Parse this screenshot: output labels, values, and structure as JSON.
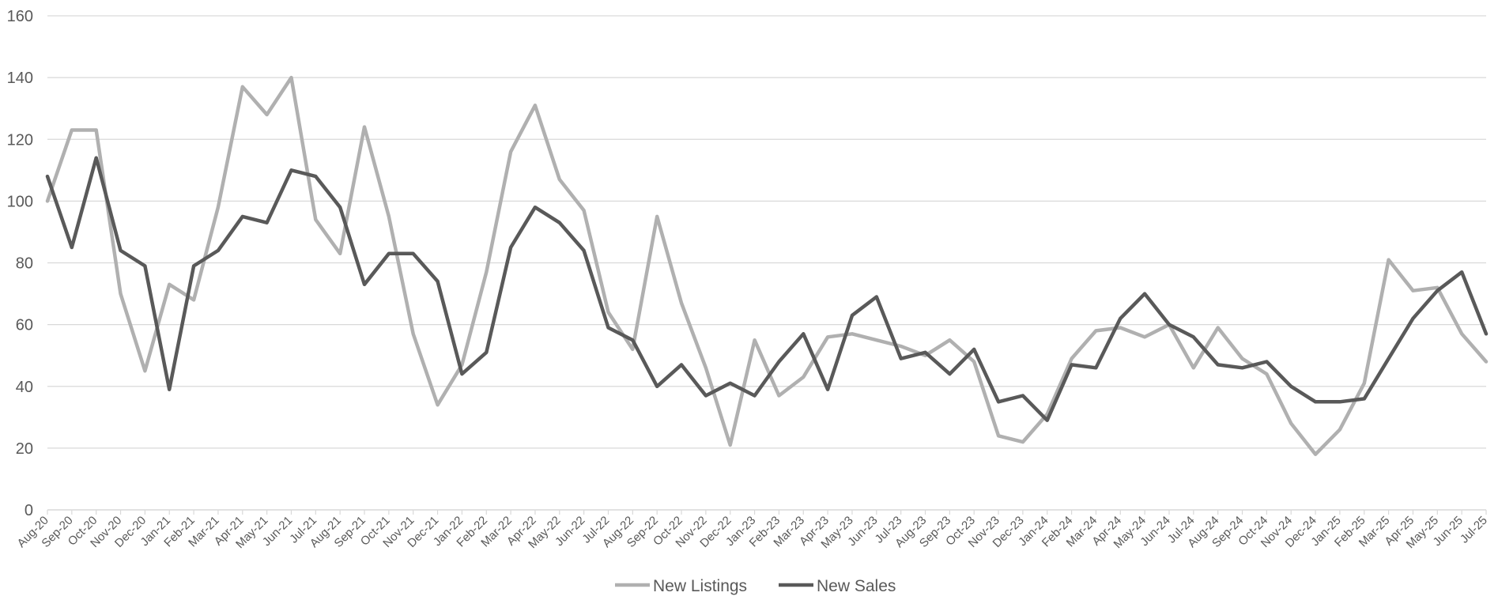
{
  "chart_data": {
    "type": "line",
    "title": "",
    "xlabel": "",
    "ylabel": "",
    "ylim": [
      0,
      160
    ],
    "yticks": [
      0,
      20,
      40,
      60,
      80,
      100,
      120,
      140,
      160
    ],
    "grid": true,
    "legend_position": "bottom",
    "categories": [
      "Aug-20",
      "Sep-20",
      "Oct-20",
      "Nov-20",
      "Dec-20",
      "Jan-21",
      "Feb-21",
      "Mar-21",
      "Apr-21",
      "May-21",
      "Jun-21",
      "Jul-21",
      "Aug-21",
      "Sep-21",
      "Oct-21",
      "Nov-21",
      "Dec-21",
      "Jan-22",
      "Feb-22",
      "Mar-22",
      "Apr-22",
      "May-22",
      "Jun-22",
      "Jul-22",
      "Aug-22",
      "Sep-22",
      "Oct-22",
      "Nov-22",
      "Dec-22",
      "Jan-23",
      "Feb-23",
      "Mar-23",
      "Apr-23",
      "May-23",
      "Jun-23",
      "Jul-23",
      "Aug-23",
      "Sep-23",
      "Oct-23",
      "Nov-23",
      "Dec-23",
      "Jan-24",
      "Feb-24",
      "Mar-24",
      "Apr-24",
      "May-24",
      "Jun-24",
      "Jul-24",
      "Aug-24",
      "Sep-24",
      "Oct-24",
      "Nov-24",
      "Dec-24",
      "Jan-25",
      "Feb-25",
      "Mar-25",
      "Apr-25",
      "May-25",
      "Jun-25",
      "Jul-25"
    ],
    "series": [
      {
        "name": "New Listings",
        "color": "#b0b0b0",
        "values": [
          100,
          123,
          123,
          70,
          45,
          73,
          68,
          98,
          137,
          128,
          140,
          94,
          83,
          124,
          95,
          57,
          34,
          47,
          77,
          116,
          131,
          107,
          97,
          64,
          52,
          95,
          67,
          46,
          21,
          55,
          37,
          43,
          56,
          57,
          55,
          53,
          50,
          55,
          48,
          24,
          22,
          31,
          49,
          58,
          59,
          56,
          60,
          46,
          59,
          49,
          44,
          28,
          18,
          26,
          41,
          81,
          71,
          72,
          57,
          48
        ]
      },
      {
        "name": "New Sales",
        "color": "#595959",
        "values": [
          108,
          85,
          114,
          84,
          79,
          39,
          79,
          84,
          95,
          93,
          110,
          108,
          98,
          73,
          83,
          83,
          74,
          44,
          51,
          85,
          98,
          93,
          84,
          59,
          55,
          40,
          47,
          37,
          41,
          37,
          48,
          57,
          39,
          63,
          69,
          49,
          51,
          44,
          52,
          35,
          37,
          29,
          47,
          46,
          62,
          70,
          60,
          56,
          47,
          46,
          48,
          40,
          35,
          35,
          36,
          49,
          62,
          71,
          77,
          57
        ]
      }
    ]
  }
}
